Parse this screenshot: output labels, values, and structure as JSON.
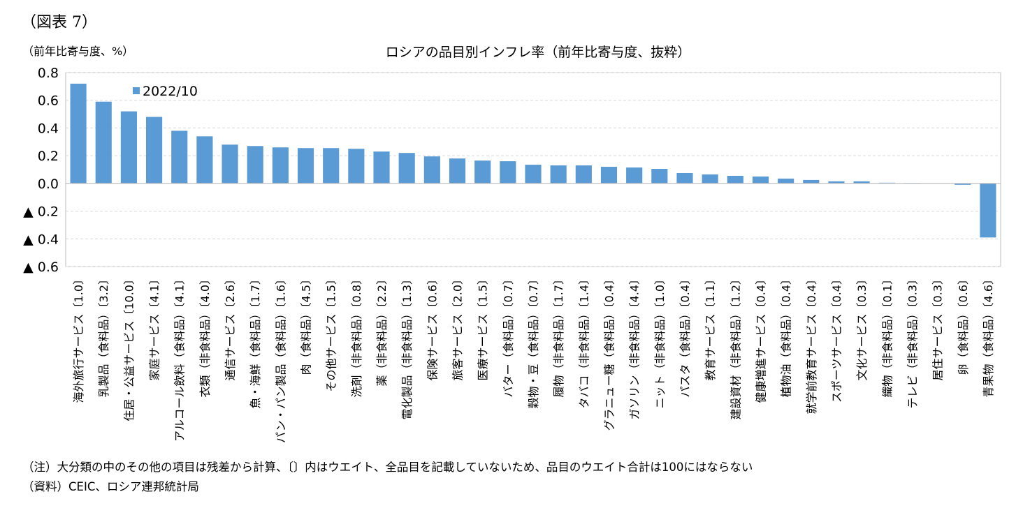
{
  "figure_label": "（図表 7）",
  "y_unit": "（前年比寄与度、%）",
  "note": "（注）大分類の中のその他の項目は残差から計算、〔〕内はウエイト、全品目を記載していないため、品目のウエイト合計は100にはならない",
  "source": "（資料）CEIC、ロシア連邦統計局",
  "colors": {
    "bar": "#5b9bd5",
    "grid": "#d9d9d9",
    "axis": "#bfbfbf"
  },
  "chart_data": {
    "type": "bar",
    "title": "ロシアの品目別インフレ率（前年比寄与度、抜粋）",
    "legend_position": "top-left",
    "grid": true,
    "ylim": [
      -0.6,
      0.8
    ],
    "yticks": [
      {
        "value": 0.8,
        "label": "0.8"
      },
      {
        "value": 0.6,
        "label": "0.6"
      },
      {
        "value": 0.4,
        "label": "0.4"
      },
      {
        "value": 0.2,
        "label": "0.2"
      },
      {
        "value": 0.0,
        "label": "0.0"
      },
      {
        "value": -0.2,
        "label": "▲ 0.2"
      },
      {
        "value": -0.4,
        "label": "▲ 0.4"
      },
      {
        "value": -0.6,
        "label": "▲ 0.6"
      }
    ],
    "categories": [
      "海外旅行サービス〔1.0〕",
      "乳製品（食料品）〔3.2〕",
      "住居・公益サービス〔10.0〕",
      "家庭サービス〔4.1〕",
      "アルコール飲料（食料品）〔4.1〕",
      "衣類（非食料品）〔4.0〕",
      "通信サービス〔2.6〕",
      "魚・海鮮（食料品）〔1.7〕",
      "パン・パン製品（食料品）〔1.6〕",
      "肉（食料品）〔4.5〕",
      "その他サービス〔1.5〕",
      "洗剤（非食料品）〔0.8〕",
      "薬（非食料品）〔2.2〕",
      "電化製品（非食料品）〔1.3〕",
      "保険サービス〔0.6〕",
      "旅客サービス〔2.0〕",
      "医療サービス〔1.5〕",
      "バター（食料品）〔0.7〕",
      "穀物・豆（食料品）〔0.7〕",
      "履物（非食料品）〔1.7〕",
      "タバコ（非食料品）〔1.4〕",
      "グラニュー糖（食料品）〔0.4〕",
      "ガソリン（非食料品）〔4.4〕",
      "ニット（非食料品）〔1.0〕",
      "パスタ（食料品）〔0.4〕",
      "教育サービス〔1.1〕",
      "建設資材（非食料品）〔1.2〕",
      "健康増進サービス〔0.4〕",
      "植物油（食料品）〔0.4〕",
      "就学前教育サービス〔0.4〕",
      "スポーツサービス〔0.4〕",
      "文化サービス〔0.3〕",
      "織物（非食料品）〔0.1〕",
      "テレビ（非食料品）〔0.3〕",
      "居住サービス〔0.3〕",
      "卵（食料品）〔0.6〕",
      "青果物（食料品）〔4.6〕"
    ],
    "series": [
      {
        "name": "2022/10",
        "values": [
          0.72,
          0.59,
          0.52,
          0.48,
          0.38,
          0.34,
          0.28,
          0.27,
          0.26,
          0.255,
          0.255,
          0.25,
          0.23,
          0.22,
          0.195,
          0.18,
          0.165,
          0.16,
          0.135,
          0.13,
          0.13,
          0.12,
          0.115,
          0.105,
          0.075,
          0.065,
          0.055,
          0.05,
          0.035,
          0.025,
          0.015,
          0.015,
          0.005,
          0.003,
          0.0,
          -0.01,
          -0.39
        ]
      }
    ]
  }
}
